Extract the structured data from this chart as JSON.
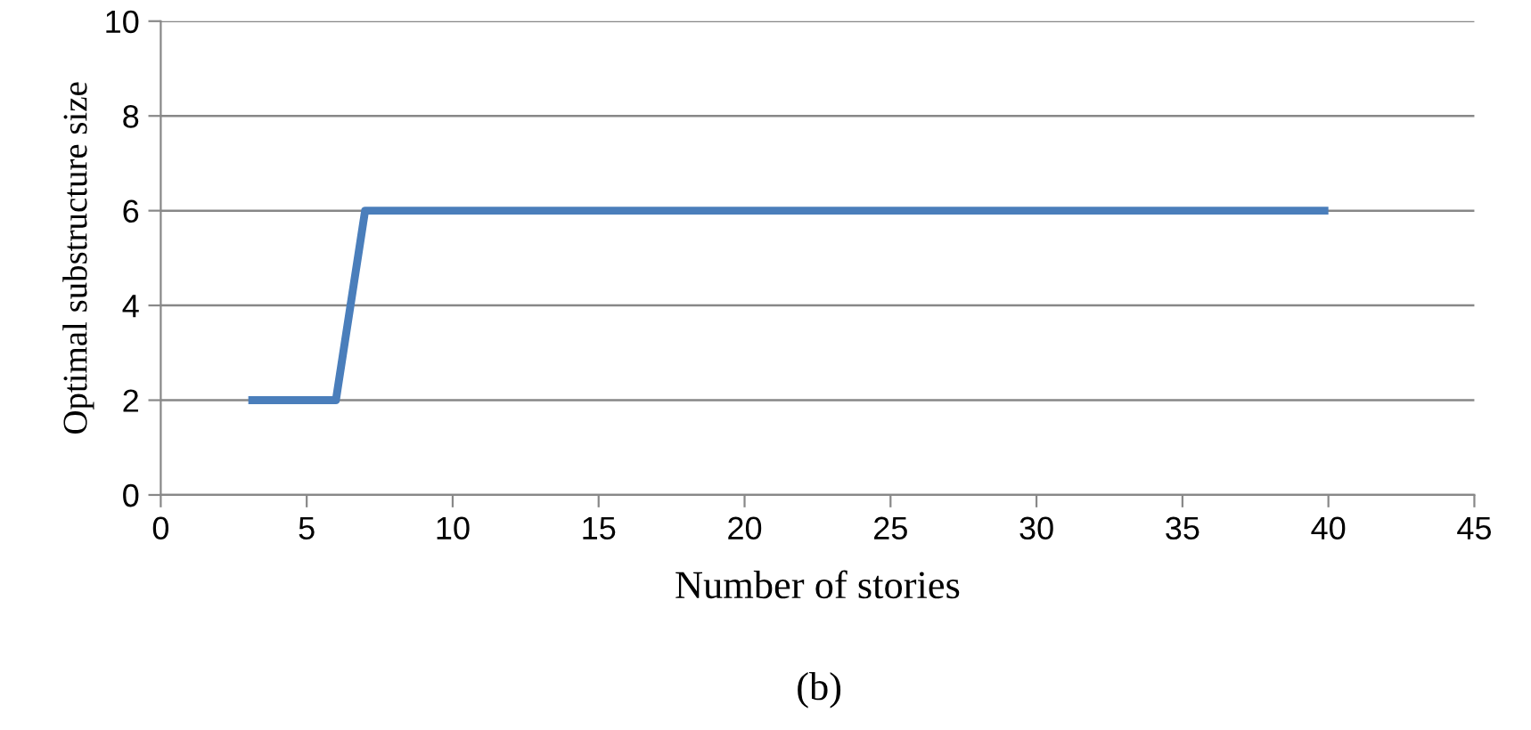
{
  "chart_data": {
    "type": "line",
    "xlabel": "Number of stories",
    "ylabel": "Optimal substructure size",
    "x": [
      3,
      6,
      7,
      40
    ],
    "series": [
      {
        "color": "#4a7ebb",
        "values": [
          2,
          2,
          6,
          6
        ]
      }
    ],
    "xlim": [
      0,
      45
    ],
    "xticks": [
      0,
      5,
      10,
      15,
      20,
      25,
      30,
      35,
      40,
      45
    ],
    "ylim": [
      0,
      10
    ],
    "yticks": [
      0,
      2,
      4,
      6,
      8,
      10
    ],
    "grid": "y",
    "legend": false,
    "marker": "none",
    "line_style": "solid",
    "annotations": [
      "(b)"
    ]
  }
}
